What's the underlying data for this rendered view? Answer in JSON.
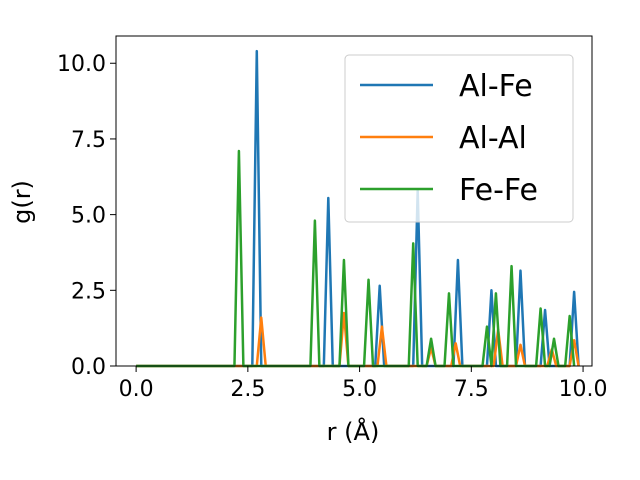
{
  "chart_data": {
    "type": "line",
    "xlabel": "r (Å)",
    "ylabel": "g(r)",
    "xlim": [
      -0.45,
      10.2
    ],
    "ylim": [
      0,
      10.9
    ],
    "xticks": [
      0.0,
      2.5,
      5.0,
      7.5,
      10.0
    ],
    "xtick_labels": [
      "0.0",
      "2.5",
      "5.0",
      "7.5",
      "10.0"
    ],
    "yticks": [
      0.0,
      2.5,
      5.0,
      7.5,
      10.0
    ],
    "ytick_labels": [
      "0.0",
      "2.5",
      "5.0",
      "7.5",
      "10.0"
    ],
    "grid": false,
    "legend_position": "top-right",
    "series": [
      {
        "name": "Al-Fe",
        "color": "#1f77b4",
        "x": [
          0.0,
          2.6,
          2.7,
          2.8,
          4.2,
          4.3,
          4.4,
          5.35,
          5.45,
          5.55,
          6.2,
          6.3,
          6.4,
          7.1,
          7.2,
          7.3,
          7.85,
          7.95,
          8.05,
          8.5,
          8.6,
          8.7,
          9.05,
          9.15,
          9.25,
          9.7,
          9.8,
          9.9
        ],
        "y": [
          0.0,
          0.0,
          10.4,
          0.0,
          0.0,
          5.55,
          0.0,
          0.0,
          2.65,
          0.0,
          0.0,
          5.8,
          0.0,
          0.0,
          3.5,
          0.0,
          0.0,
          2.5,
          0.0,
          0.0,
          3.15,
          0.0,
          0.0,
          1.85,
          0.0,
          0.0,
          2.45,
          0.0
        ]
      },
      {
        "name": "Al-Al",
        "color": "#ff7f0e",
        "x": [
          0.0,
          2.7,
          2.8,
          2.9,
          4.55,
          4.65,
          4.75,
          5.4,
          5.5,
          5.6,
          6.5,
          6.6,
          6.7,
          7.05,
          7.15,
          7.25,
          8.0,
          8.1,
          8.2,
          8.5,
          8.6,
          8.7,
          9.2,
          9.3,
          9.4,
          9.7,
          9.8,
          9.9
        ],
        "y": [
          0.0,
          0.0,
          1.6,
          0.0,
          0.0,
          1.75,
          0.0,
          0.0,
          1.3,
          0.0,
          0.0,
          0.6,
          0.0,
          0.0,
          0.75,
          0.0,
          0.0,
          1.2,
          0.0,
          0.0,
          0.7,
          0.0,
          0.0,
          0.55,
          0.0,
          0.0,
          0.85,
          0.0
        ]
      },
      {
        "name": "Fe-Fe",
        "color": "#2ca02c",
        "x": [
          0.0,
          2.2,
          2.3,
          2.4,
          3.9,
          4.0,
          4.1,
          4.55,
          4.65,
          4.75,
          5.1,
          5.2,
          5.3,
          6.1,
          6.2,
          6.3,
          6.5,
          6.6,
          6.7,
          6.9,
          7.0,
          7.1,
          7.75,
          7.85,
          7.95,
          7.95,
          8.05,
          8.15,
          8.3,
          8.4,
          8.5,
          8.95,
          9.05,
          9.15,
          9.25,
          9.35,
          9.45,
          9.6,
          9.7,
          9.8
        ],
        "y": [
          0.0,
          0.0,
          7.1,
          0.0,
          0.0,
          4.8,
          0.0,
          0.0,
          3.5,
          0.0,
          0.0,
          2.85,
          0.0,
          0.0,
          4.05,
          0.0,
          0.0,
          0.9,
          0.0,
          0.0,
          2.4,
          0.0,
          0.0,
          1.3,
          0.0,
          0.0,
          2.4,
          0.0,
          0.0,
          3.3,
          0.0,
          0.0,
          1.9,
          0.0,
          0.0,
          0.9,
          0.0,
          0.0,
          1.65,
          0.0
        ]
      }
    ]
  }
}
